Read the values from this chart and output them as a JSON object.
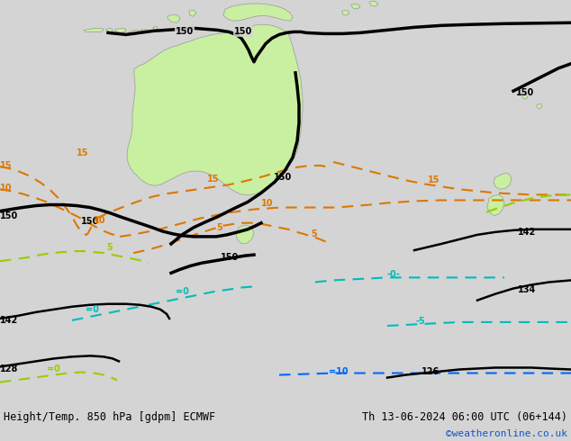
{
  "title_left": "Height/Temp. 850 hPa [gdpm] ECMWF",
  "title_right": "Th 13-06-2024 06:00 UTC (06+144)",
  "credit": "©weatheronline.co.uk",
  "fig_width": 6.34,
  "fig_height": 4.9,
  "dpi": 100,
  "bg_color": "#d4d4d4",
  "land_green": "#c8f0a0",
  "land_border": "#999999",
  "black": "#000000",
  "orange": "#dd7700",
  "cyan": "#00bbbb",
  "blue": "#0066ff",
  "yellow_green": "#99cc00",
  "credit_color": "#1155cc",
  "text_color": "#000000",
  "font_size_label": 8,
  "font_size_contour": 7
}
